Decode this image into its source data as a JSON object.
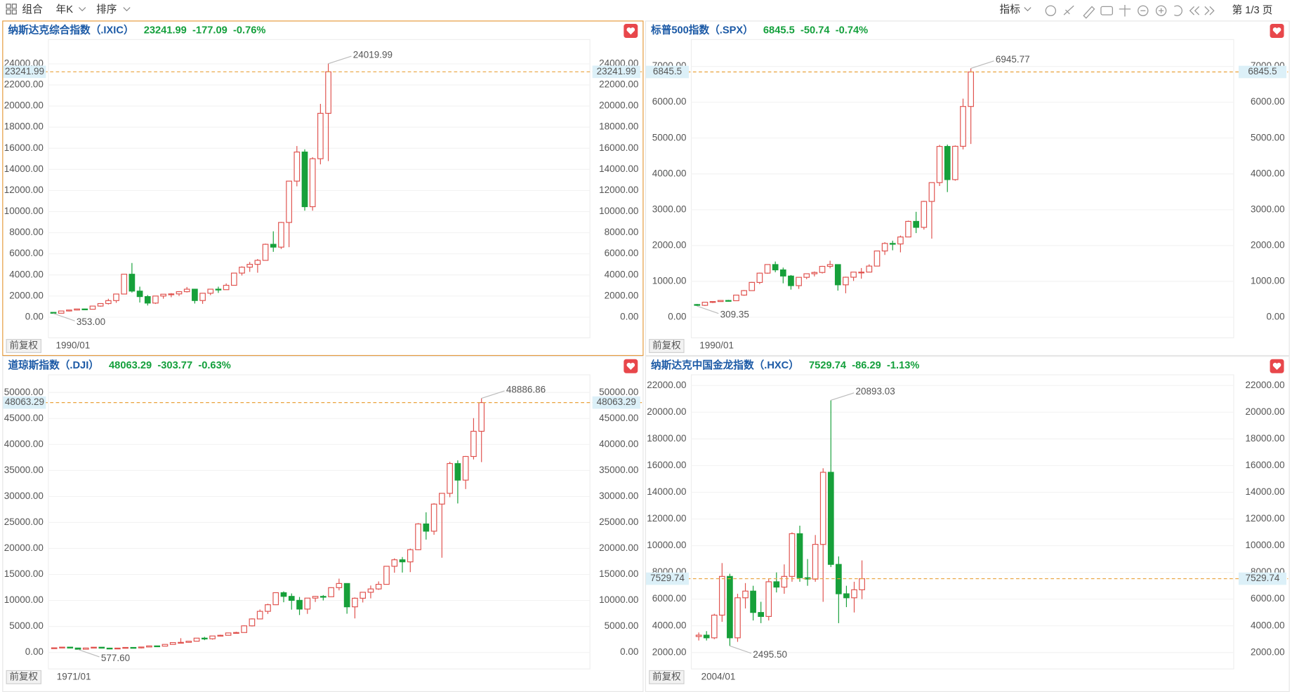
{
  "toolbar": {
    "combo": "组合",
    "period": "年K",
    "sort": "排序",
    "indicator": "指标",
    "page": "第 1/3 页"
  },
  "chart_data": [
    {
      "type": "candlestick",
      "title": "纳斯达克综合指数（.IXIC）",
      "last_price": 23241.99,
      "change": -177.09,
      "change_pct": {
        "value": -0.76,
        "label": "-0.76%"
      },
      "categories": [
        "1990/01",
        null,
        null,
        null,
        null,
        null,
        null,
        null,
        null,
        null,
        null,
        null,
        null,
        null,
        null,
        null,
        null,
        null,
        null,
        null,
        null,
        null,
        null,
        null,
        null,
        null,
        null,
        null,
        null,
        null,
        null,
        null,
        null,
        null,
        null,
        null
      ],
      "open": [
        454,
        374,
        586,
        677,
        777,
        752,
        1052,
        1291,
        1570,
        2193,
        4069,
        2471,
        1950,
        1336,
        2003,
        2175,
        2205,
        2415,
        2652,
        1577,
        2269,
        2653,
        2605,
        3020,
        4177,
        4736,
        5007,
        5383,
        6903,
        6635,
        8973,
        12888,
        15645,
        10466,
        15011,
        19311
      ],
      "high": [
        470,
        586,
        677,
        787,
        803,
        1070,
        1329,
        1745,
        2201,
        4069,
        5132,
        2892,
        2098,
        2010,
        2191,
        2278,
        2470,
        2861,
        2661,
        2295,
        2675,
        2888,
        3197,
        4177,
        4814,
        5232,
        5512,
        6969,
        8133,
        9022,
        12899,
        16212,
        15901,
        15150,
        20205,
        24019.99
      ],
      "low": [
        353,
        355,
        546,
        645,
        691,
        743,
        988,
        1201,
        1358,
        2190,
        2332,
        1387,
        1108,
        1253,
        1750,
        1890,
        2012,
        2340,
        1295,
        1265,
        2091,
        2298,
        2630,
        3020,
        3946,
        4292,
        4210,
        5357,
        6190,
        6457,
        6631,
        12397,
        10089,
        10088,
        14477,
        14784
      ],
      "close": [
        374,
        586,
        677,
        777,
        752,
        1052,
        1291,
        1570,
        2193,
        4069,
        2471,
        1950,
        1336,
        2003,
        2175,
        2205,
        2415,
        2652,
        1577,
        2269,
        2653,
        2605,
        3020,
        4177,
        4736,
        5007,
        5383,
        6903,
        6635,
        8973,
        12888,
        15645,
        10466,
        15011,
        19311,
        23241.99
      ],
      "max_label": "24019.99",
      "min_label": "353.00",
      "adjust_label": "前复权",
      "ylim": [
        -1950,
        26300
      ],
      "yticks": [
        {
          "value": 0,
          "label": "0.00"
        },
        {
          "value": 2000,
          "label": "2000.00"
        },
        {
          "value": 4000,
          "label": "4000.00"
        },
        {
          "value": 6000,
          "label": "6000.00"
        },
        {
          "value": 8000,
          "label": "8000.00"
        },
        {
          "value": 10000,
          "label": "10000.00"
        },
        {
          "value": 12000,
          "label": "12000.00"
        },
        {
          "value": 14000,
          "label": "14000.00"
        },
        {
          "value": 16000,
          "label": "16000.00"
        },
        {
          "value": 18000,
          "label": "18000.00"
        },
        {
          "value": 20000,
          "label": "20000.00"
        },
        {
          "value": 22000,
          "label": "22000.00"
        },
        {
          "value": 24000,
          "label": "24000.00"
        }
      ],
      "grid": true,
      "up_color": "#e0524e",
      "down_color": "#17a03a",
      "last_line_color": "#e9a23b"
    },
    {
      "type": "candlestick",
      "title": "标普500指数（.SPX）",
      "last_price": 6845.5,
      "change": -50.74,
      "change_pct": {
        "value": -0.74,
        "label": "-0.74%"
      },
      "categories": [
        "1990/01",
        null,
        null,
        null,
        null,
        null,
        null,
        null,
        null,
        null,
        null,
        null,
        null,
        null,
        null,
        null,
        null,
        null,
        null,
        null,
        null,
        null,
        null,
        null,
        null,
        null,
        null,
        null,
        null,
        null,
        null,
        null,
        null,
        null,
        null,
        null
      ],
      "open": [
        353,
        330,
        417,
        436,
        466,
        459,
        616,
        741,
        970,
        1229,
        1469,
        1320,
        1148,
        880,
        1112,
        1212,
        1248,
        1418,
        1468,
        903,
        1115,
        1258,
        1258,
        1426,
        1848,
        2059,
        2044,
        2239,
        2674,
        2507,
        3231,
        3756,
        4766,
        3840,
        4770,
        5882
      ],
      "high": [
        369,
        418,
        442,
        471,
        482,
        622,
        758,
        983,
        1244,
        1474,
        1553,
        1384,
        1176,
        1112,
        1217,
        1275,
        1432,
        1576,
        1471,
        1130,
        1263,
        1371,
        1475,
        1849,
        2093,
        2135,
        2278,
        2695,
        2941,
        3248,
        3760,
        4808,
        4818,
        4793,
        6100,
        6945.77
      ],
      "low": [
        309.35,
        312,
        394,
        429,
        435,
        459,
        598,
        737,
        924,
        1212,
        1254,
        945,
        769,
        789,
        1061,
        1137,
        1219,
        1364,
        741,
        667,
        1011,
        1075,
        1259,
        1426,
        1737,
        1867,
        1810,
        2245,
        2347,
        2444,
        2192,
        3662,
        3492,
        3809,
        4683,
        4835
      ],
      "close": [
        330,
        417,
        436,
        466,
        459,
        616,
        741,
        970,
        1229,
        1469,
        1320,
        1148,
        880,
        1112,
        1212,
        1248,
        1418,
        1468,
        903,
        1115,
        1258,
        1258,
        1426,
        1848,
        2059,
        2044,
        2239,
        2674,
        2507,
        3231,
        3756,
        4766,
        3840,
        4770,
        5882,
        6845.5
      ],
      "max_label": "6945.77",
      "min_label": "309.35",
      "adjust_label": "前复权",
      "ylim": [
        -575,
        7750
      ],
      "yticks": [
        {
          "value": 0,
          "label": "0.00"
        },
        {
          "value": 1000,
          "label": "1000.00"
        },
        {
          "value": 2000,
          "label": "2000.00"
        },
        {
          "value": 3000,
          "label": "3000.00"
        },
        {
          "value": 4000,
          "label": "4000.00"
        },
        {
          "value": 5000,
          "label": "5000.00"
        },
        {
          "value": 6000,
          "label": "6000.00"
        },
        {
          "value": 7000,
          "label": "7000.00"
        }
      ],
      "grid": true,
      "up_color": "#e0524e",
      "down_color": "#17a03a",
      "last_line_color": "#e9a23b"
    },
    {
      "type": "candlestick",
      "title": "道琼斯指数（.DJI）",
      "last_price": 48063.29,
      "change": -303.77,
      "change_pct": {
        "value": -0.63,
        "label": "-0.63%"
      },
      "categories": [
        "1971/01",
        null,
        null,
        null,
        null,
        null,
        null,
        null,
        null,
        null,
        null,
        null,
        null,
        null,
        null,
        null,
        null,
        null,
        null,
        null,
        null,
        null,
        null,
        null,
        null,
        null,
        null,
        null,
        null,
        null,
        null,
        null,
        null,
        null,
        null,
        null,
        null,
        null,
        null,
        null,
        null,
        null,
        null,
        null,
        null,
        null,
        null,
        null,
        null,
        null,
        null,
        null,
        null,
        null,
        null
      ],
      "open": [
        839,
        890,
        1020,
        851,
        616,
        852,
        1005,
        831,
        805,
        839,
        964,
        875,
        1047,
        1259,
        1212,
        1547,
        1896,
        1939,
        2169,
        2753,
        2634,
        3169,
        3301,
        3754,
        3834,
        5117,
        6448,
        7908,
        9181,
        11497,
        10787,
        10021,
        8342,
        10454,
        10783,
        10718,
        12463,
        13265,
        8776,
        10428,
        11578,
        12218,
        13104,
        16577,
        17823,
        17425,
        19763,
        24719,
        23327,
        28538,
        30606,
        36338,
        33147,
        37690,
        42544
      ],
      "high": [
        951,
        1052,
        1052,
        892,
        882,
        1015,
        1015,
        908,
        898,
        1000,
        1024,
        1071,
        1287,
        1287,
        1553,
        1956,
        2747,
        2184,
        2792,
        3000,
        3169,
        3414,
        3794,
        3978,
        5216,
        6561,
        8259,
        9374,
        11568,
        11750,
        11350,
        10673,
        10454,
        10868,
        11043,
        12529,
        14198,
        13279,
        10580,
        11625,
        12876,
        13661,
        16588,
        18103,
        18351,
        19987,
        24876,
        26952,
        28702,
        30638,
        36680,
        36953,
        37778,
        45074,
        48886.86
      ],
      "low": [
        797,
        889,
        788,
        577.6,
        600,
        850,
        800,
        742,
        796,
        759,
        824,
        776,
        1027,
        1086,
        1185,
        1502,
        1738,
        1879,
        2144,
        2365,
        2470,
        3136,
        3242,
        3593,
        3832,
        5000,
        6392,
        7400,
        9121,
        9655,
        8236,
        7197,
        7417,
        9708,
        10000,
        10667,
        11939,
        7449,
        6547,
        9614,
        10404,
        12035,
        13104,
        15340,
        15370,
        15450,
        19678,
        21713,
        22638,
        18214,
        29856,
        28660,
        31430,
        37122,
        36612
      ],
      "close": [
        890,
        1020,
        851,
        616,
        852,
        1005,
        831,
        805,
        839,
        964,
        875,
        1047,
        1259,
        1212,
        1547,
        1896,
        1939,
        2169,
        2753,
        2634,
        3169,
        3301,
        3754,
        3834,
        5117,
        6448,
        7908,
        9181,
        11497,
        10787,
        10021,
        8342,
        10454,
        10783,
        10718,
        12463,
        13265,
        8776,
        10428,
        11578,
        12218,
        13104,
        16577,
        17823,
        17425,
        19763,
        24719,
        23327,
        28538,
        30606,
        36338,
        33147,
        37690,
        42544,
        48063.29
      ],
      "max_label": "48886.86",
      "min_label": "577.60",
      "adjust_label": "前复权",
      "ylim": [
        -3170,
        53400
      ],
      "yticks": [
        {
          "value": 0,
          "label": "0.00"
        },
        {
          "value": 5000,
          "label": "5000.00"
        },
        {
          "value": 10000,
          "label": "10000.00"
        },
        {
          "value": 15000,
          "label": "15000.00"
        },
        {
          "value": 20000,
          "label": "20000.00"
        },
        {
          "value": 25000,
          "label": "25000.00"
        },
        {
          "value": 30000,
          "label": "30000.00"
        },
        {
          "value": 35000,
          "label": "35000.00"
        },
        {
          "value": 40000,
          "label": "40000.00"
        },
        {
          "value": 45000,
          "label": "45000.00"
        },
        {
          "value": 50000,
          "label": "50000.00"
        }
      ],
      "grid": true,
      "up_color": "#e0524e",
      "down_color": "#17a03a",
      "last_line_color": "#e9a23b"
    },
    {
      "type": "candlestick",
      "title": "纳斯达克中国金龙指数（.HXC）",
      "last_price": 7529.74,
      "change": -86.29,
      "change_pct": {
        "value": -1.13,
        "label": "-1.13%"
      },
      "categories": [
        "2004/01",
        null,
        null,
        null,
        null,
        null,
        null,
        null,
        null,
        null,
        null,
        null,
        null,
        null,
        null,
        null,
        null,
        null,
        null,
        null,
        null,
        null
      ],
      "open": [
        3200,
        3300,
        3100,
        4800,
        7700,
        3100,
        6100,
        6600,
        5000,
        4700,
        7300,
        6900,
        7700,
        10900,
        7600,
        7500,
        10100,
        15500,
        8600,
        6400,
        6100,
        6700
      ],
      "high": [
        3500,
        3600,
        4900,
        8700,
        7900,
        6400,
        7200,
        7000,
        5800,
        7500,
        8000,
        8600,
        11000,
        11500,
        9000,
        10800,
        15800,
        20893.03,
        9200,
        7000,
        7300,
        8900
      ],
      "low": [
        2900,
        2900,
        3000,
        4300,
        2495.5,
        2800,
        5300,
        4400,
        4200,
        4400,
        6500,
        6400,
        7300,
        7300,
        7000,
        7300,
        5800,
        8400,
        4200,
        5400,
        5000,
        6000
      ],
      "close": [
        3300,
        3100,
        4800,
        7700,
        3100,
        6100,
        6600,
        5000,
        4700,
        7300,
        6900,
        7700,
        10900,
        7600,
        7500,
        10100,
        15500,
        8600,
        6400,
        6100,
        6700,
        7529.74
      ],
      "max_label": "20893.03",
      "min_label": "2495.50",
      "adjust_label": "前复权",
      "ylim": [
        770,
        22800
      ],
      "yticks": [
        {
          "value": 2000,
          "label": "2000.00"
        },
        {
          "value": 4000,
          "label": "4000.00"
        },
        {
          "value": 6000,
          "label": "6000.00"
        },
        {
          "value": 8000,
          "label": "8000.00"
        },
        {
          "value": 10000,
          "label": "10000.00"
        },
        {
          "value": 12000,
          "label": "12000.00"
        },
        {
          "value": 14000,
          "label": "14000.00"
        },
        {
          "value": 16000,
          "label": "16000.00"
        },
        {
          "value": 18000,
          "label": "18000.00"
        },
        {
          "value": 20000,
          "label": "20000.00"
        },
        {
          "value": 22000,
          "label": "22000.00"
        }
      ],
      "grid": true,
      "up_color": "#e0524e",
      "down_color": "#17a03a",
      "last_line_color": "#e9a23b"
    }
  ]
}
